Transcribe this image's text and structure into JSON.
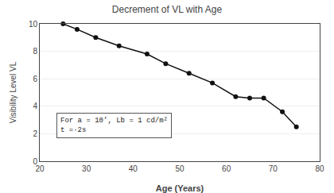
{
  "chart_data": {
    "type": "line",
    "title": "Decrement of VL with Age",
    "xlabel": "Age (Years)",
    "ylabel": "Visibility Level VL",
    "x": [
      25,
      28,
      32,
      37,
      43,
      47,
      52,
      57,
      62,
      65,
      68,
      72,
      75
    ],
    "values": [
      10.0,
      9.6,
      9.0,
      8.4,
      7.8,
      7.1,
      6.4,
      5.7,
      4.7,
      4.6,
      4.6,
      3.6,
      2.5
    ],
    "color": "#111111",
    "marker": "circle",
    "xlim": [
      20,
      80
    ],
    "ylim": [
      0,
      10
    ],
    "xticks": [
      20,
      30,
      40,
      50,
      60,
      70,
      80
    ],
    "yticks": [
      0,
      2,
      4,
      6,
      8,
      10
    ],
    "grid": "y",
    "annotation": [
      "For a = 10’, Lb = 1 cd/m²",
      "t =·2s"
    ]
  }
}
